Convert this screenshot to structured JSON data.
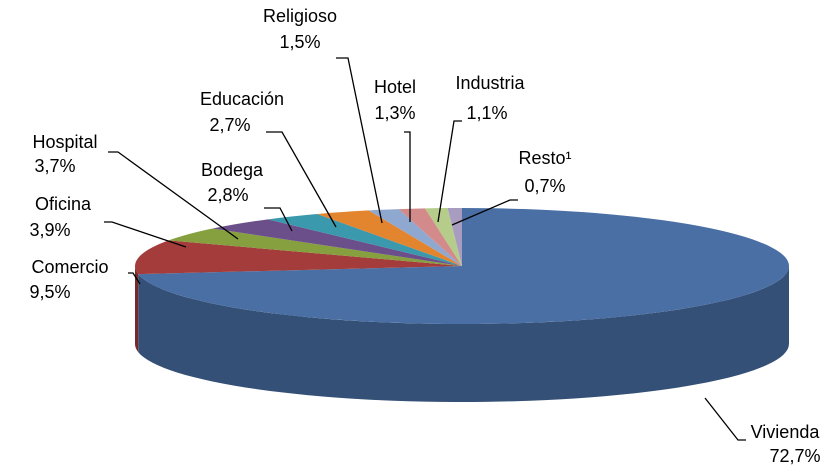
{
  "chart_data": {
    "type": "pie",
    "categories": [
      "Vivienda",
      "Comercio",
      "Oficina",
      "Hospital",
      "Bodega",
      "Educación",
      "Religioso",
      "Hotel",
      "Industria",
      "Resto¹"
    ],
    "values": [
      72.7,
      9.5,
      3.9,
      3.7,
      2.8,
      2.7,
      1.5,
      1.3,
      1.1,
      0.7
    ],
    "value_labels": [
      "72,7%",
      "9,5%",
      "3,9%",
      "3,7%",
      "2,8%",
      "2,7%",
      "1,5%",
      "1,3%",
      "1,1%",
      "0,7%"
    ],
    "colors": [
      "#4a6fa5",
      "#a33c3a",
      "#86a03f",
      "#6b4f8a",
      "#3a99ac",
      "#e3842f",
      "#8fa8d0",
      "#d38a8a",
      "#b5cc8a",
      "#a89cc0"
    ]
  }
}
